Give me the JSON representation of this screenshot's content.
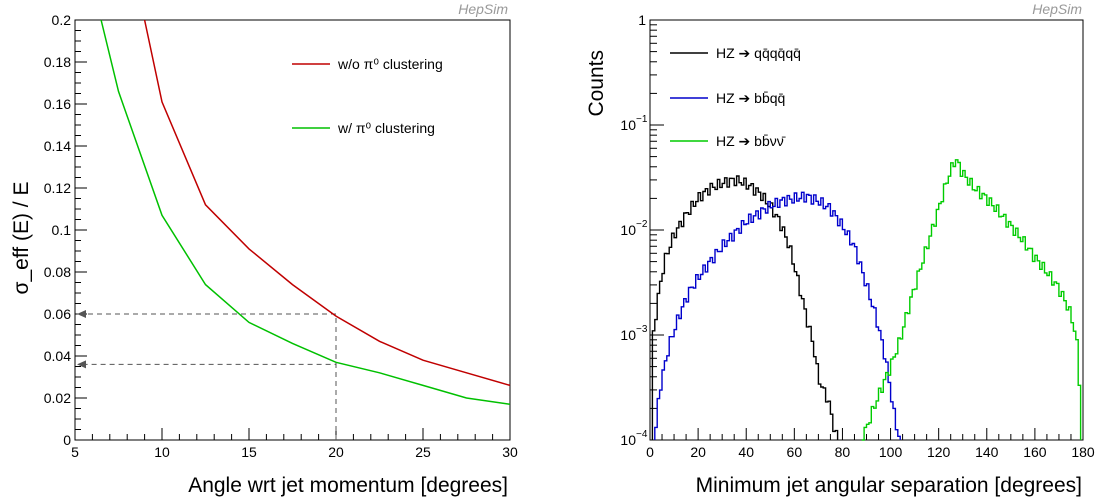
{
  "chart_data": [
    {
      "type": "line",
      "watermark": "HepSim",
      "xlabel": "Angle wrt jet momentum  [degrees]",
      "ylabel": "σ_eff (E) / E",
      "xlim": [
        5,
        30
      ],
      "ylim": [
        0,
        0.2
      ],
      "xticks": [
        "5",
        "10",
        "15",
        "20",
        "25",
        "30"
      ],
      "yticks": [
        "0",
        "0.02",
        "0.04",
        "0.06",
        "0.08",
        "0.1",
        "0.12",
        "0.14",
        "0.16",
        "0.18",
        "0.2"
      ],
      "grid": false,
      "legend_position": "top-right",
      "series": [
        {
          "name": "w/o π⁰ clustering",
          "color": "#c00000",
          "x": [
            9,
            10,
            12.5,
            15,
            17.5,
            20,
            22.5,
            25,
            27.5,
            30
          ],
          "y": [
            0.2,
            0.161,
            0.112,
            0.091,
            0.074,
            0.059,
            0.047,
            0.038,
            0.032,
            0.026
          ]
        },
        {
          "name": "w/ π⁰ clustering",
          "color": "#00c000",
          "x": [
            6.5,
            7.5,
            10,
            12.5,
            15,
            17.5,
            20,
            22.5,
            25,
            27.5,
            30
          ],
          "y": [
            0.2,
            0.166,
            0.107,
            0.074,
            0.056,
            0.046,
            0.037,
            0.032,
            0.026,
            0.02,
            0.017
          ]
        }
      ],
      "annotations": [
        {
          "type": "dashed-guide",
          "x": 20,
          "y": 0.06
        },
        {
          "type": "dashed-guide",
          "x": 20,
          "y": 0.036
        }
      ]
    },
    {
      "type": "line",
      "step": true,
      "log_y": true,
      "watermark": "HepSim",
      "xlabel": "Minimum jet angular separation [degrees]",
      "ylabel": "Counts",
      "xlim": [
        0,
        180
      ],
      "ylim": [
        0.0001,
        1
      ],
      "xticks": [
        "0",
        "20",
        "40",
        "60",
        "80",
        "100",
        "120",
        "140",
        "160",
        "180"
      ],
      "yticks": [
        {
          "base": "10",
          "exp": "−4",
          "value": 0.0001
        },
        {
          "base": "10",
          "exp": "−3",
          "value": 0.001
        },
        {
          "base": "10",
          "exp": "−2",
          "value": 0.01
        },
        {
          "base": "10",
          "exp": "−1",
          "value": 0.1
        },
        {
          "base": "1",
          "exp": "",
          "value": 1
        }
      ],
      "grid": false,
      "legend_position": "top-left",
      "series": [
        {
          "name": "HZ ➔ qq̄qq̄qq̄",
          "color": "#000000",
          "x": [
            1,
            3,
            6,
            10,
            15,
            20,
            25,
            30,
            35,
            38,
            42,
            46,
            50,
            54,
            58,
            62,
            65,
            68,
            70,
            72,
            74,
            76,
            78
          ],
          "y": [
            0.0008,
            0.002,
            0.005,
            0.009,
            0.014,
            0.02,
            0.025,
            0.028,
            0.03,
            0.029,
            0.026,
            0.022,
            0.017,
            0.012,
            0.007,
            0.003,
            0.0015,
            0.0008,
            0.0004,
            0.0003,
            0.00025,
            0.00015,
            0.0001
          ]
        },
        {
          "name": "HZ ➔ bb̄qq̄",
          "color": "#0000cc",
          "x": [
            2,
            4,
            8,
            12,
            16,
            20,
            25,
            30,
            40,
            50,
            55,
            60,
            65,
            70,
            75,
            80,
            85,
            90,
            94,
            98,
            100,
            102,
            104
          ],
          "y": [
            0.0001,
            0.0003,
            0.0008,
            0.0015,
            0.0025,
            0.0035,
            0.005,
            0.007,
            0.012,
            0.017,
            0.019,
            0.02,
            0.021,
            0.019,
            0.016,
            0.011,
            0.007,
            0.003,
            0.0015,
            0.0006,
            0.0003,
            0.00015,
            0.0001
          ]
        },
        {
          "name": "HZ ➔ bb̄νν̄",
          "color": "#00cc00",
          "x": [
            88,
            90,
            93,
            96,
            100,
            104,
            108,
            112,
            116,
            120,
            124,
            127,
            130,
            135,
            140,
            145,
            150,
            155,
            160,
            165,
            170,
            174,
            176,
            178,
            179
          ],
          "y": [
            0.0001,
            0.00013,
            0.0002,
            0.0003,
            0.0005,
            0.0009,
            0.002,
            0.004,
            0.008,
            0.016,
            0.032,
            0.048,
            0.035,
            0.025,
            0.02,
            0.015,
            0.011,
            0.008,
            0.0055,
            0.004,
            0.0028,
            0.0018,
            0.0013,
            0.0007,
            0.0002
          ]
        }
      ]
    }
  ]
}
